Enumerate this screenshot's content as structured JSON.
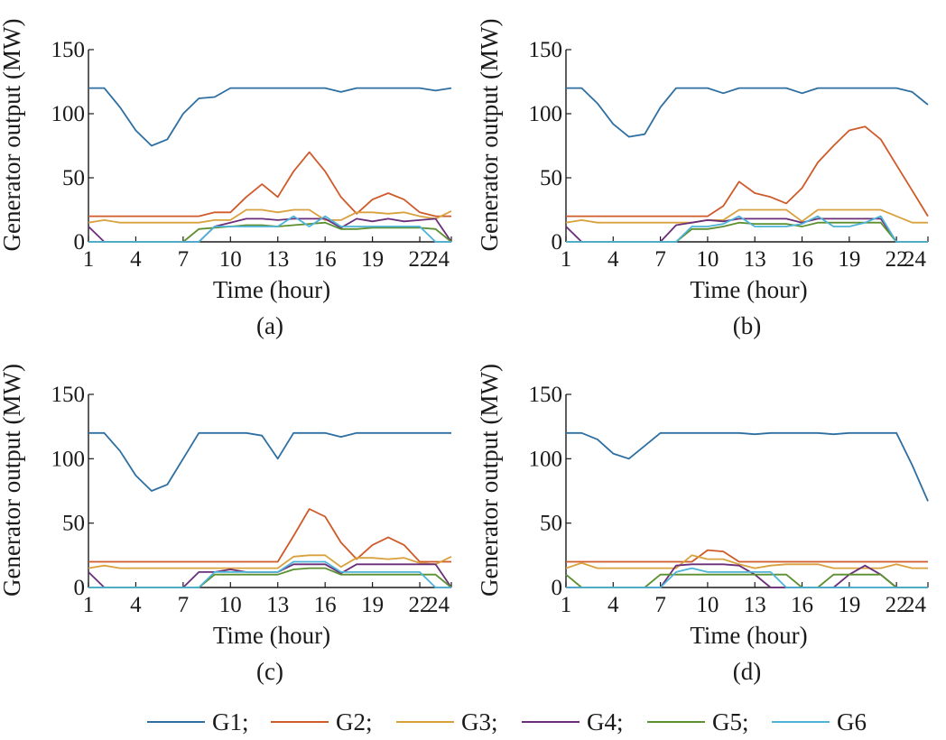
{
  "chart_data": [
    {
      "type": "line",
      "caption": "(a)",
      "xlabel": "Time (hour)",
      "ylabel": "Generator output (MW)",
      "xlim": [
        1,
        24
      ],
      "ylim": [
        0,
        150
      ],
      "xticks": [
        1,
        4,
        7,
        10,
        13,
        16,
        19,
        22,
        24
      ],
      "yticks": [
        0,
        50,
        100,
        150
      ],
      "series": [
        {
          "name": "G1",
          "values": [
            120,
            120,
            105,
            87,
            75,
            80,
            100,
            112,
            113,
            120,
            120,
            120,
            120,
            120,
            120,
            120,
            117,
            120,
            120,
            120,
            120,
            120,
            118,
            120
          ]
        },
        {
          "name": "G2",
          "values": [
            20,
            20,
            20,
            20,
            20,
            20,
            20,
            20,
            23,
            23,
            35,
            45,
            35,
            55,
            70,
            55,
            35,
            22,
            33,
            38,
            33,
            23,
            20,
            20
          ]
        },
        {
          "name": "G3",
          "values": [
            15,
            17,
            15,
            15,
            15,
            15,
            15,
            15,
            17,
            17,
            25,
            25,
            23,
            25,
            25,
            17,
            17,
            23,
            23,
            22,
            23,
            20,
            18,
            24
          ]
        },
        {
          "name": "G4",
          "values": [
            12,
            0,
            0,
            0,
            0,
            0,
            0,
            0,
            12,
            15,
            18,
            18,
            17,
            18,
            18,
            18,
            11,
            18,
            16,
            18,
            16,
            17,
            18,
            0
          ]
        },
        {
          "name": "G5",
          "values": [
            0,
            0,
            0,
            0,
            0,
            0,
            0,
            10,
            11,
            12,
            13,
            13,
            12,
            13,
            14,
            15,
            10,
            10,
            11,
            11,
            11,
            11,
            10,
            0
          ]
        },
        {
          "name": "G6",
          "values": [
            0,
            0,
            0,
            0,
            0,
            0,
            0,
            0,
            12,
            12,
            12,
            12,
            12,
            20,
            12,
            20,
            12,
            12,
            12,
            12,
            12,
            12,
            0,
            0
          ]
        }
      ]
    },
    {
      "type": "line",
      "caption": "(b)",
      "xlabel": "Time (hour)",
      "ylabel": "Generator output (MW)",
      "xlim": [
        1,
        24
      ],
      "ylim": [
        0,
        150
      ],
      "xticks": [
        1,
        4,
        7,
        10,
        13,
        16,
        19,
        22,
        24
      ],
      "yticks": [
        0,
        50,
        100,
        150
      ],
      "series": [
        {
          "name": "G1",
          "values": [
            120,
            120,
            108,
            92,
            82,
            84,
            105,
            120,
            120,
            120,
            116,
            120,
            120,
            120,
            120,
            116,
            120,
            120,
            120,
            120,
            120,
            120,
            117,
            107
          ]
        },
        {
          "name": "G2",
          "values": [
            20,
            20,
            20,
            20,
            20,
            20,
            20,
            20,
            20,
            20,
            28,
            47,
            38,
            35,
            30,
            42,
            62,
            75,
            87,
            90,
            80,
            60,
            40,
            20
          ]
        },
        {
          "name": "G3",
          "values": [
            15,
            17,
            15,
            15,
            15,
            15,
            15,
            15,
            15,
            17,
            17,
            25,
            25,
            25,
            25,
            16,
            25,
            25,
            25,
            25,
            25,
            20,
            15,
            15
          ]
        },
        {
          "name": "G4",
          "values": [
            12,
            0,
            0,
            0,
            0,
            0,
            0,
            13,
            15,
            17,
            16,
            18,
            18,
            18,
            18,
            15,
            18,
            18,
            18,
            18,
            18,
            0,
            0,
            0
          ]
        },
        {
          "name": "G5",
          "values": [
            0,
            0,
            0,
            0,
            0,
            0,
            0,
            0,
            10,
            10,
            12,
            15,
            14,
            14,
            14,
            12,
            15,
            15,
            15,
            15,
            15,
            0,
            0,
            0
          ]
        },
        {
          "name": "G6",
          "values": [
            0,
            0,
            0,
            0,
            0,
            0,
            0,
            0,
            12,
            12,
            14,
            20,
            12,
            12,
            12,
            14,
            20,
            12,
            12,
            15,
            20,
            0,
            0,
            0
          ]
        }
      ]
    },
    {
      "type": "line",
      "caption": "(c)",
      "xlabel": "Time (hour)",
      "ylabel": "Generator output (MW)",
      "xlim": [
        1,
        24
      ],
      "ylim": [
        0,
        150
      ],
      "xticks": [
        1,
        4,
        7,
        10,
        13,
        16,
        19,
        22,
        24
      ],
      "yticks": [
        0,
        50,
        100,
        150
      ],
      "series": [
        {
          "name": "G1",
          "values": [
            120,
            120,
            106,
            87,
            75,
            80,
            100,
            120,
            120,
            120,
            120,
            118,
            100,
            120,
            120,
            120,
            117,
            120,
            120,
            120,
            120,
            120,
            120,
            120
          ]
        },
        {
          "name": "G2",
          "values": [
            20,
            20,
            20,
            20,
            20,
            20,
            20,
            20,
            20,
            20,
            20,
            20,
            20,
            40,
            61,
            55,
            35,
            22,
            33,
            39,
            33,
            20,
            20,
            20
          ]
        },
        {
          "name": "G3",
          "values": [
            15,
            17,
            15,
            15,
            15,
            15,
            15,
            15,
            15,
            15,
            15,
            15,
            15,
            24,
            25,
            25,
            16,
            23,
            23,
            22,
            23,
            19,
            18,
            24
          ]
        },
        {
          "name": "G4",
          "values": [
            12,
            0,
            0,
            0,
            0,
            0,
            0,
            12,
            12,
            14,
            12,
            12,
            12,
            18,
            18,
            18,
            11,
            18,
            18,
            18,
            18,
            18,
            18,
            0
          ]
        },
        {
          "name": "G5",
          "values": [
            0,
            0,
            0,
            0,
            0,
            0,
            0,
            0,
            10,
            10,
            10,
            10,
            10,
            14,
            15,
            15,
            10,
            10,
            10,
            10,
            10,
            10,
            10,
            0
          ]
        },
        {
          "name": "G6",
          "values": [
            0,
            0,
            0,
            0,
            0,
            0,
            0,
            0,
            12,
            12,
            12,
            12,
            12,
            20,
            20,
            20,
            12,
            12,
            12,
            12,
            12,
            12,
            0,
            0
          ]
        }
      ]
    },
    {
      "type": "line",
      "caption": "(d)",
      "xlabel": "Time (hour)",
      "ylabel": "Generator output (MW)",
      "xlim": [
        1,
        24
      ],
      "ylim": [
        0,
        150
      ],
      "xticks": [
        1,
        4,
        7,
        10,
        13,
        16,
        19,
        22,
        24
      ],
      "yticks": [
        0,
        50,
        100,
        150
      ],
      "series": [
        {
          "name": "G1",
          "values": [
            120,
            120,
            115,
            104,
            100,
            110,
            120,
            120,
            120,
            120,
            120,
            120,
            119,
            120,
            120,
            120,
            120,
            119,
            120,
            120,
            120,
            120,
            95,
            67
          ]
        },
        {
          "name": "G2",
          "values": [
            20,
            20,
            20,
            20,
            20,
            20,
            20,
            20,
            20,
            29,
            28,
            20,
            20,
            20,
            20,
            20,
            20,
            20,
            20,
            20,
            20,
            20,
            20,
            20
          ]
        },
        {
          "name": "G3",
          "values": [
            15,
            19,
            15,
            15,
            15,
            15,
            15,
            15,
            25,
            22,
            22,
            18,
            15,
            17,
            18,
            18,
            18,
            15,
            15,
            15,
            15,
            18,
            15,
            15
          ]
        },
        {
          "name": "G4",
          "values": [
            0,
            0,
            0,
            0,
            0,
            0,
            0,
            17,
            18,
            18,
            18,
            17,
            10,
            0,
            0,
            0,
            0,
            0,
            10,
            17,
            10,
            0,
            0,
            0
          ]
        },
        {
          "name": "G5",
          "values": [
            10,
            0,
            0,
            0,
            0,
            0,
            10,
            10,
            10,
            10,
            10,
            10,
            10,
            10,
            10,
            0,
            0,
            10,
            10,
            10,
            10,
            0,
            0,
            0
          ]
        },
        {
          "name": "G6",
          "values": [
            0,
            0,
            0,
            0,
            0,
            0,
            0,
            12,
            15,
            12,
            12,
            12,
            12,
            12,
            0,
            0,
            0,
            0,
            0,
            0,
            0,
            0,
            0,
            0
          ]
        }
      ]
    }
  ],
  "legend": {
    "entries": [
      {
        "label": "G1;",
        "color": "#2e6fa1"
      },
      {
        "label": "G2;",
        "color": "#cf5a2a"
      },
      {
        "label": "G3;",
        "color": "#d9a13e"
      },
      {
        "label": "G4;",
        "color": "#6b2f7a"
      },
      {
        "label": "G5;",
        "color": "#5b8f2f"
      },
      {
        "label": "G6",
        "color": "#4db3d8"
      }
    ]
  },
  "colors": {
    "G1": "#2e6fa1",
    "G2": "#cf5a2a",
    "G3": "#d9a13e",
    "G4": "#6b2f7a",
    "G5": "#5b8f2f",
    "G6": "#4db3d8",
    "axis": "#1a1a1a"
  }
}
